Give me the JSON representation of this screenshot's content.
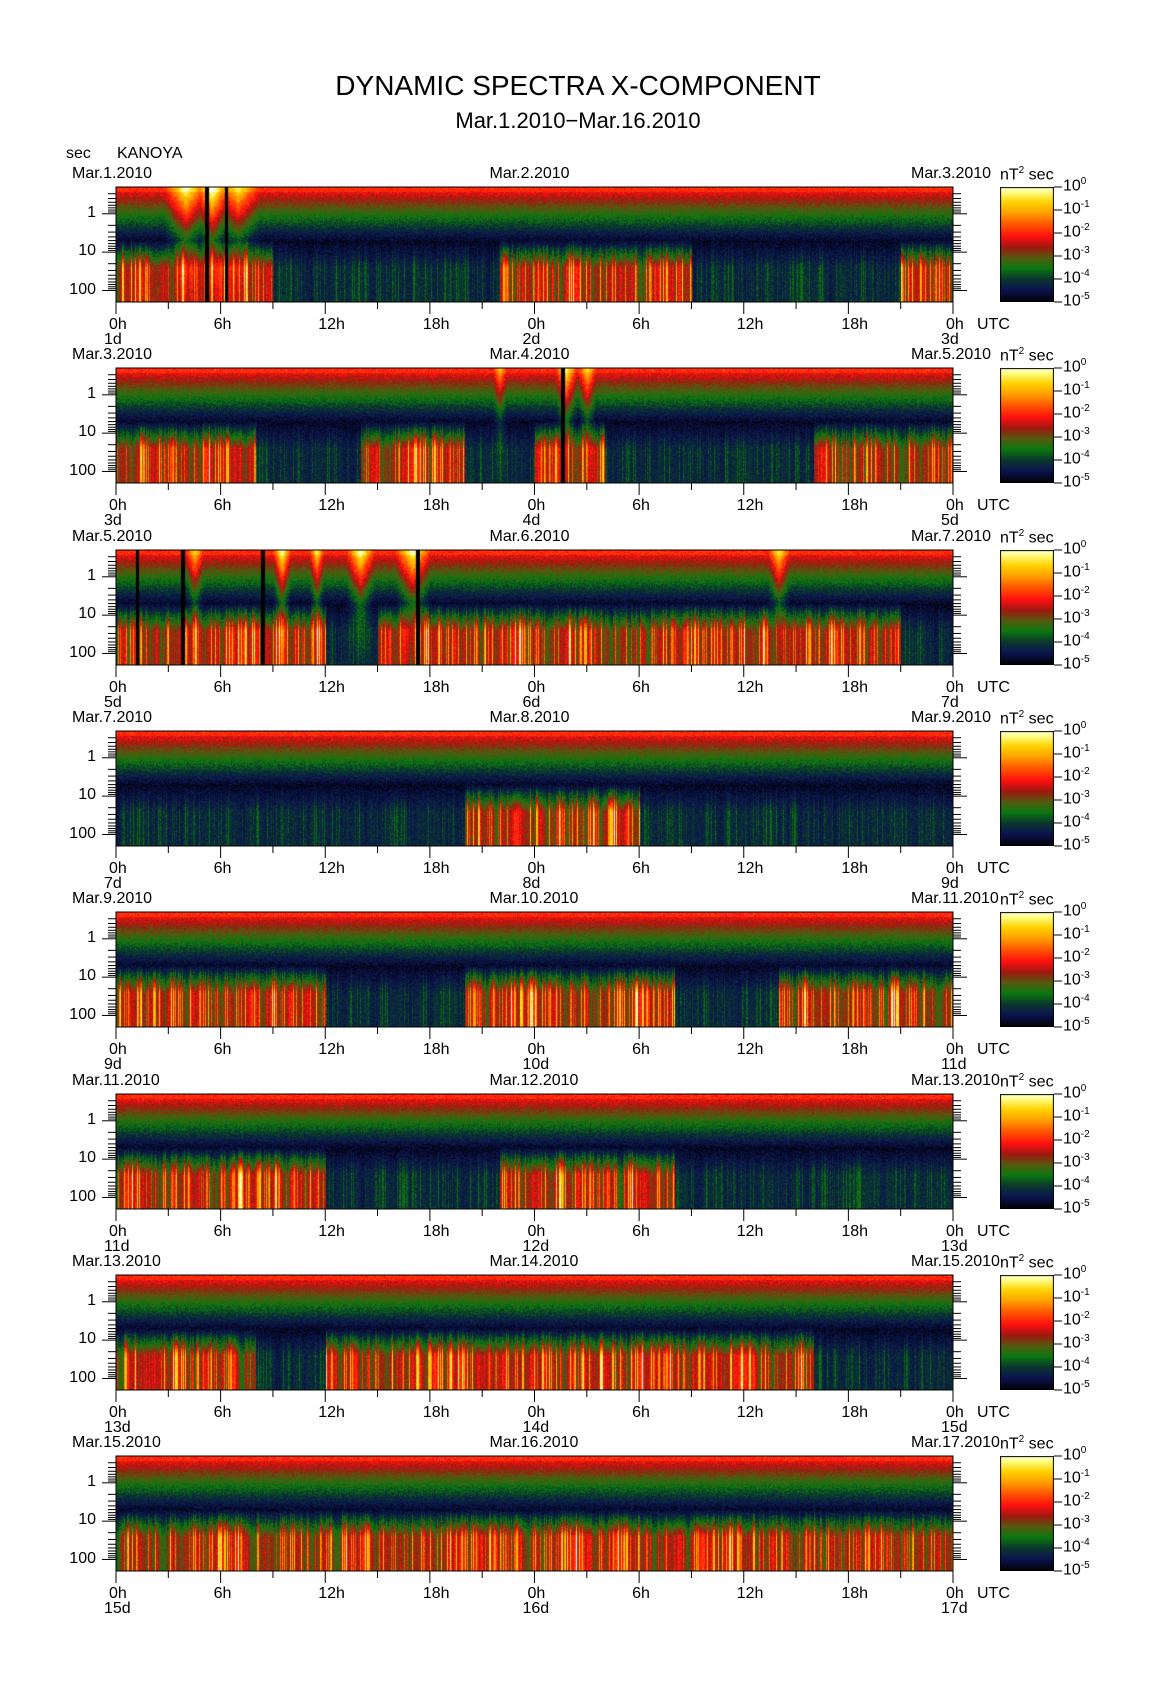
{
  "header": {
    "title": "DYNAMIC SPECTRA X-COMPONENT",
    "subtitle": "Mar.1.2010−Mar.16.2010",
    "y_unit": "sec",
    "station": "KANOYA",
    "utc_label": "UTC",
    "colorbar_unit": "nT",
    "colorbar_unit_exp": "2",
    "colorbar_unit_suffix": "sec"
  },
  "chart_data": {
    "type": "heatmap",
    "title": "DYNAMIC SPECTRA X-COMPONENT",
    "subtitle": "Mar.1.2010−Mar.16.2010",
    "xlabel": "UTC",
    "ylabel": "sec",
    "y_scale": "log",
    "y_ticks": [
      "1",
      "10",
      "100"
    ],
    "y_tick_values": [
      1,
      10,
      100
    ],
    "x_ticks": [
      "0h",
      "6h",
      "12h",
      "18h",
      "0h",
      "6h",
      "12h",
      "18h",
      "0h"
    ],
    "colorbar": {
      "scale": "log",
      "range": [
        -5,
        0
      ],
      "tick_base": "10",
      "tick_exponents": [
        "0",
        "-1",
        "-2",
        "-3",
        "-4",
        "-5"
      ],
      "colors": [
        "#000000",
        "#0c1450",
        "#0a3a2a",
        "#0a7a10",
        "#5a5a10",
        "#a01810",
        "#ff1010",
        "#ff5a00",
        "#ffa000",
        "#ffd000",
        "#ffff80"
      ]
    },
    "panels": [
      {
        "start": "Mar.1.2010",
        "mid": "Mar.2.2010",
        "end": "Mar.3.2010",
        "days": [
          "1d",
          "2d",
          "3d"
        ]
      },
      {
        "start": "Mar.3.2010",
        "mid": "Mar.4.2010",
        "end": "Mar.5.2010",
        "days": [
          "3d",
          "4d",
          "5d"
        ]
      },
      {
        "start": "Mar.5.2010",
        "mid": "Mar.6.2010",
        "end": "Mar.7.2010",
        "days": [
          "5d",
          "6d",
          "7d"
        ]
      },
      {
        "start": "Mar.7.2010",
        "mid": "Mar.8.2010",
        "end": "Mar.9.2010",
        "days": [
          "7d",
          "8d",
          "9d"
        ]
      },
      {
        "start": "Mar.9.2010",
        "mid": "Mar.10.2010",
        "end": "Mar.11.2010",
        "days": [
          "9d",
          "10d",
          "11d"
        ]
      },
      {
        "start": "Mar.11.2010",
        "mid": "Mar.12.2010",
        "end": "Mar.13.2010",
        "days": [
          "11d",
          "12d",
          "13d"
        ]
      },
      {
        "start": "Mar.13.2010",
        "mid": "Mar.14.2010",
        "end": "Mar.15.2010",
        "days": [
          "13d",
          "14d",
          "15d"
        ]
      },
      {
        "start": "Mar.15.2010",
        "mid": "Mar.16.2010",
        "end": "Mar.17.2010",
        "days": [
          "15d",
          "16d",
          "17d"
        ]
      }
    ]
  }
}
